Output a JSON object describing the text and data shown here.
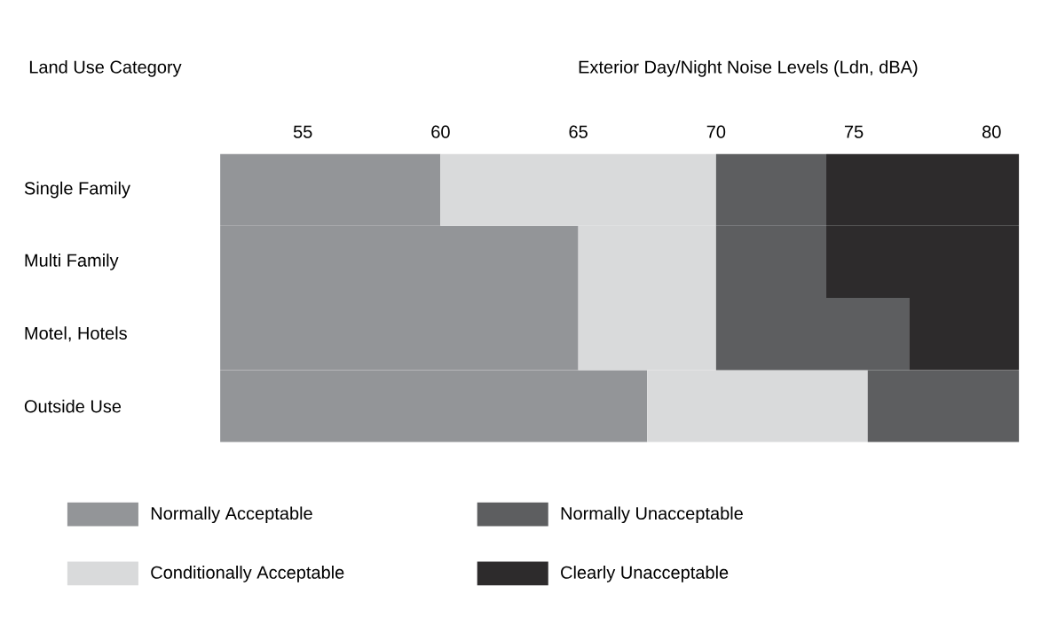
{
  "chart_data": {
    "type": "bar",
    "orientation": "horizontal",
    "xlabel": "Exterior Day/Night Noise Levels (Ldn, dBA)",
    "ylabel": "Land Use Category",
    "categories": [
      "Single Family",
      "Multi Family",
      "Motel, Hotels",
      "Outside Use"
    ],
    "xlim": [
      52,
      81
    ],
    "xticks": [
      55,
      60,
      65,
      70,
      75,
      80
    ],
    "legend": "bottom",
    "series": [
      {
        "name": "Normally Acceptable",
        "color": "#939598",
        "base": [
          52,
          52,
          52,
          52
        ],
        "values": [
          8,
          13,
          13,
          15.5
        ]
      },
      {
        "name": "Conditionally Acceptable",
        "color": "#d9dadb",
        "base": [
          60,
          65,
          65,
          67.5
        ],
        "values": [
          10,
          5,
          5,
          8
        ]
      },
      {
        "name": "Normally Unacceptable",
        "color": "#5d5e60",
        "base": [
          70,
          70,
          70,
          75.5
        ],
        "values": [
          4,
          4,
          7,
          5.5
        ]
      },
      {
        "name": "Clearly Unacceptable",
        "color": "#2d2b2c",
        "base": [
          74,
          74,
          77,
          null
        ],
        "values": [
          7,
          7,
          4,
          null
        ]
      }
    ]
  }
}
